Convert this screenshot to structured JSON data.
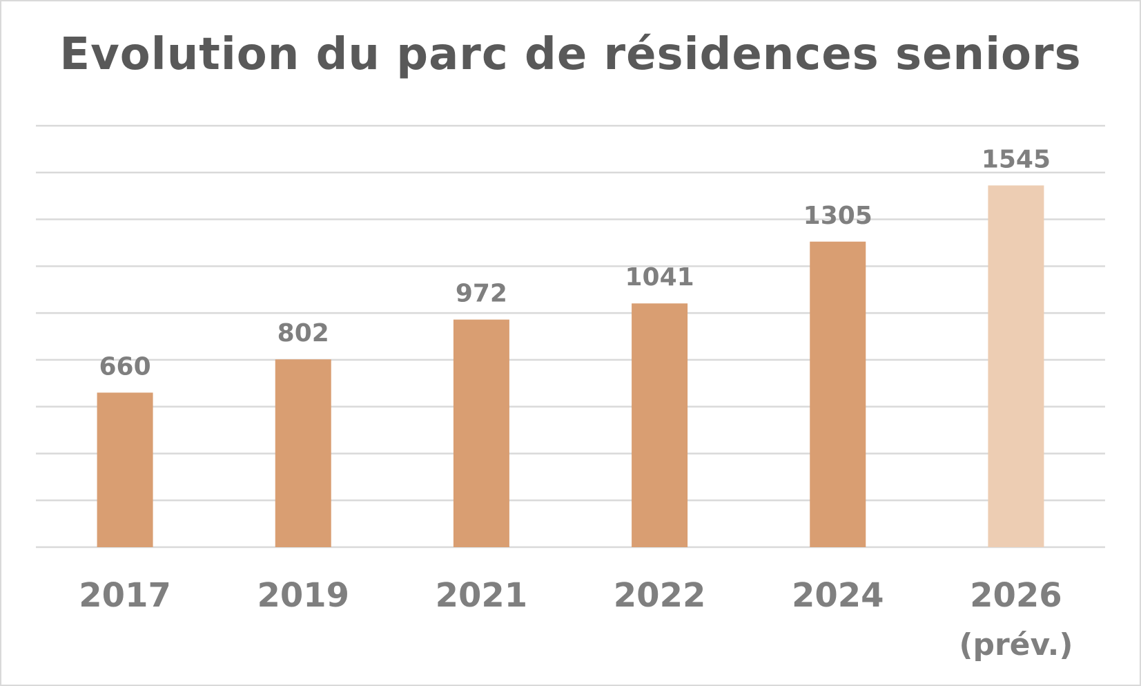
{
  "chart_data": {
    "type": "bar",
    "title": "Evolution du parc de résidences seniors",
    "xlabel": "",
    "ylabel": "",
    "categories": [
      "2017",
      "2019",
      "2021",
      "2022",
      "2024",
      "2026"
    ],
    "category_sublabels": [
      "",
      "",
      "",
      "",
      "",
      "(prév.)"
    ],
    "values": [
      660,
      802,
      972,
      1041,
      1305,
      1545
    ],
    "data_labels": [
      "660",
      "802",
      "972",
      "1041",
      "1305",
      "1545"
    ],
    "ylim": [
      0,
      1800
    ],
    "grid": true,
    "legend": "none",
    "colors": {
      "bar": "#d99e72",
      "bar_forecast": "#edcdb3",
      "gridline": "#d9d9d9",
      "text": "#7f7f7f",
      "title": "#595959"
    }
  }
}
